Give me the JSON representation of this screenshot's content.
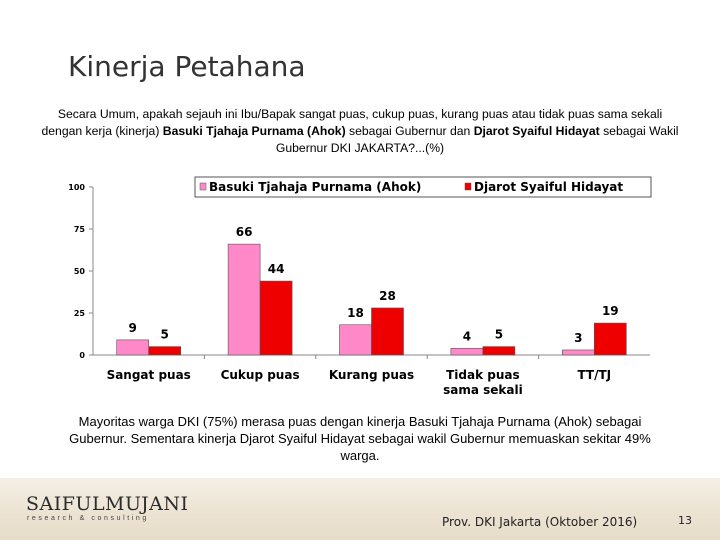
{
  "slide": {
    "title": "Kinerja Petahana",
    "question_part1": "Secara Umum, apakah sejauh ini Ibu/Bapak sangat puas, cukup puas, kurang puas atau tidak puas sama sekali dengan kerja (kinerja) ",
    "question_bold1": "Basuki Tjahaja Purnama (Ahok)",
    "question_part2": " sebagai Gubernur dan ",
    "question_bold2": "Djarot Syaiful Hidayat",
    "question_part3": " sebagai Wakil Gubernur DKI JAKARTA?...(%)",
    "conclusion": "Mayoritas warga DKI (75%) merasa puas dengan kinerja Basuki Tjahaja Purnama (Ahok) sebagai Gubernur. Sementara kinerja Djarot Syaiful Hidayat sebagai wakil Gubernur memuaskan sekitar 49% warga.",
    "logo_main": "SAIFULMUJANI",
    "logo_sub": "research & consulting",
    "source": "Prov. DKI Jakarta (Oktober 2016)",
    "page_number": "13"
  },
  "chart_data": {
    "type": "bar",
    "categories": [
      "Sangat puas",
      "Cukup puas",
      "Kurang puas",
      "Tidak puas sama sekali",
      "TT/TJ"
    ],
    "category_lines": [
      [
        "Sangat puas"
      ],
      [
        "Cukup puas"
      ],
      [
        "Kurang puas"
      ],
      [
        "Tidak puas",
        "sama sekali"
      ],
      [
        "TT/TJ"
      ]
    ],
    "series": [
      {
        "name": "Basuki Tjahaja Purnama (Ahok)",
        "values": [
          9,
          66,
          18,
          4,
          3
        ],
        "color": "#ff88c8"
      },
      {
        "name": "Djarot Syaiful Hidayat",
        "values": [
          5,
          44,
          28,
          5,
          19
        ],
        "color": "#ee0000"
      }
    ],
    "ylim": [
      0,
      100
    ],
    "yticks": [
      0,
      25,
      50,
      75,
      100
    ],
    "legend_position": "top",
    "grid": false,
    "data_labels": true
  }
}
